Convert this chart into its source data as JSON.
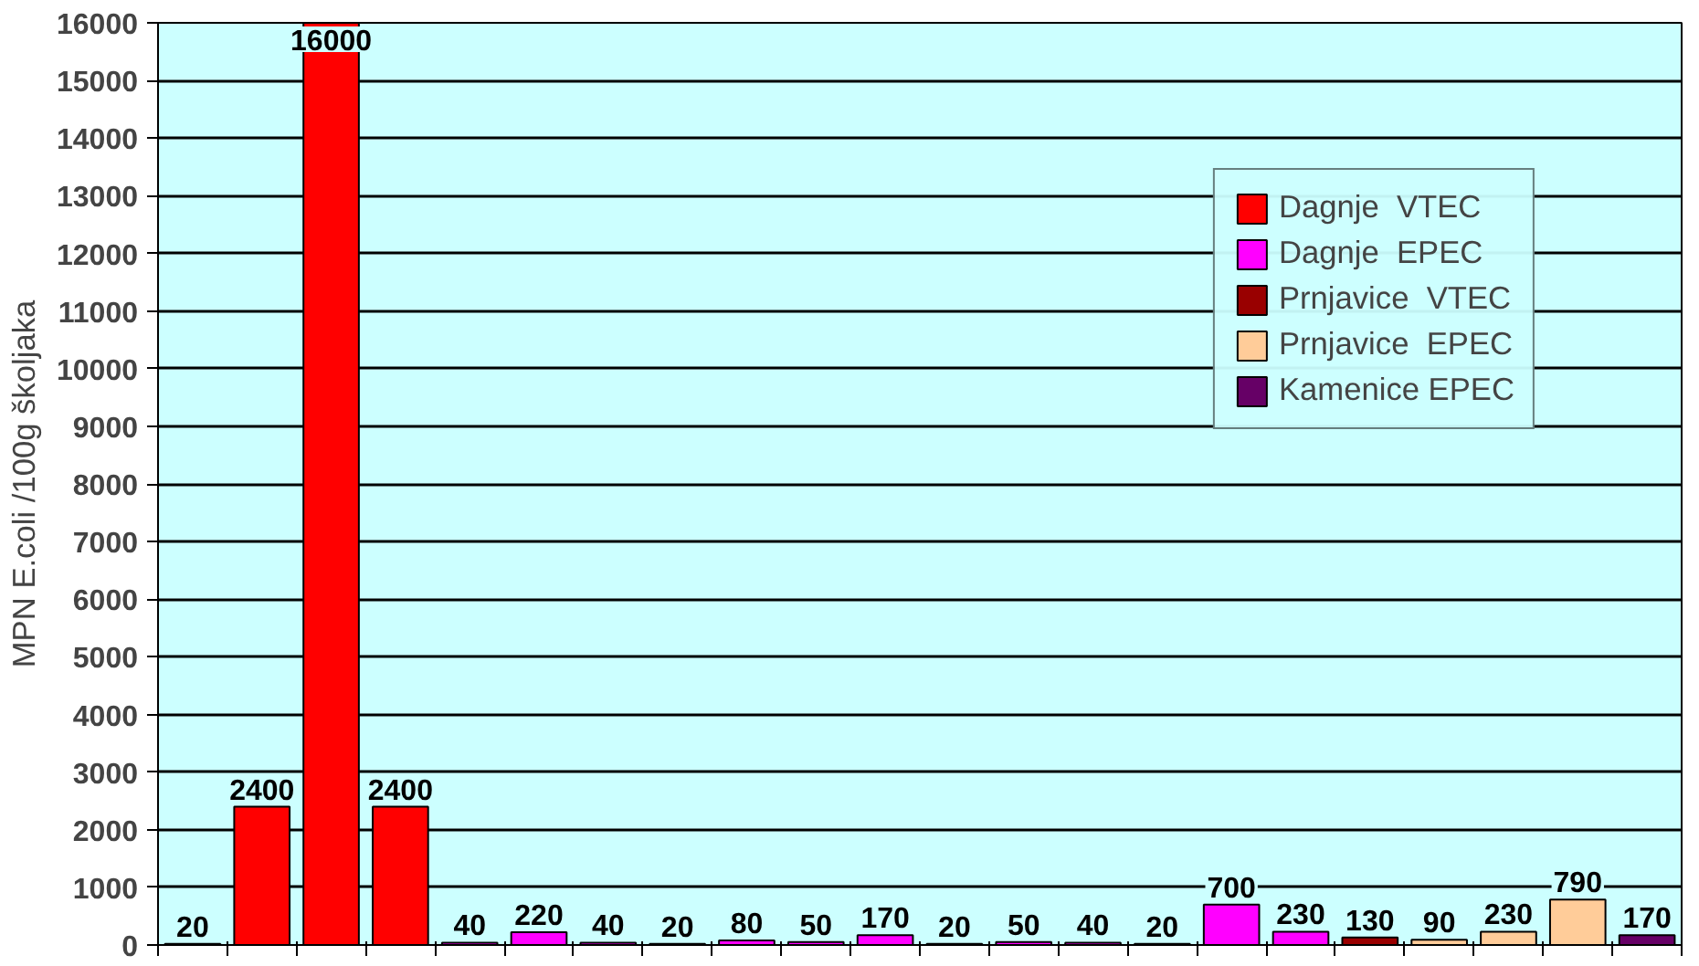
{
  "chart_data": {
    "type": "bar",
    "ylabel": "MPN E.coli /100g školjaka",
    "categories": [
      null,
      null,
      null,
      null,
      null,
      null,
      null,
      null,
      null,
      null,
      null,
      null,
      null,
      null,
      null,
      null,
      null,
      null,
      null,
      null,
      null,
      null
    ],
    "series": [
      {
        "name": "Dagnje  VTEC",
        "color": "#ff0000",
        "values": [
          20,
          2400,
          16000,
          2400,
          null,
          null,
          null,
          null,
          null,
          null,
          null,
          null,
          null,
          null,
          null,
          null,
          null,
          null,
          null,
          null,
          null,
          null
        ]
      },
      {
        "name": "Dagnje  EPEC",
        "color": "#ff00ff",
        "values": [
          null,
          null,
          null,
          null,
          40,
          220,
          40,
          20,
          80,
          50,
          170,
          20,
          50,
          40,
          20,
          700,
          230,
          null,
          null,
          null,
          null,
          null
        ]
      },
      {
        "name": "Prnjavice  VTEC",
        "color": "#990000",
        "values": [
          null,
          null,
          null,
          null,
          null,
          null,
          null,
          null,
          null,
          null,
          null,
          null,
          null,
          null,
          null,
          null,
          null,
          130,
          null,
          null,
          null,
          null
        ]
      },
      {
        "name": "Prnjavice  EPEC",
        "color": "#ffcc99",
        "values": [
          null,
          null,
          null,
          null,
          null,
          null,
          null,
          null,
          null,
          null,
          null,
          null,
          null,
          null,
          null,
          null,
          null,
          null,
          90,
          230,
          790,
          null
        ]
      },
      {
        "name": "Kamenice EPEC",
        "color": "#660066",
        "values": [
          null,
          null,
          null,
          null,
          null,
          null,
          null,
          null,
          null,
          null,
          null,
          null,
          null,
          null,
          null,
          null,
          null,
          null,
          null,
          null,
          null,
          170
        ]
      }
    ],
    "data_labels": true,
    "ylim": [
      0,
      16000
    ],
    "yticks": [
      0,
      1000,
      2000,
      3000,
      4000,
      5000,
      6000,
      7000,
      8000,
      9000,
      10000,
      11000,
      12000,
      13000,
      14000,
      15000,
      16000
    ],
    "grid": "y",
    "legend": "top right"
  }
}
